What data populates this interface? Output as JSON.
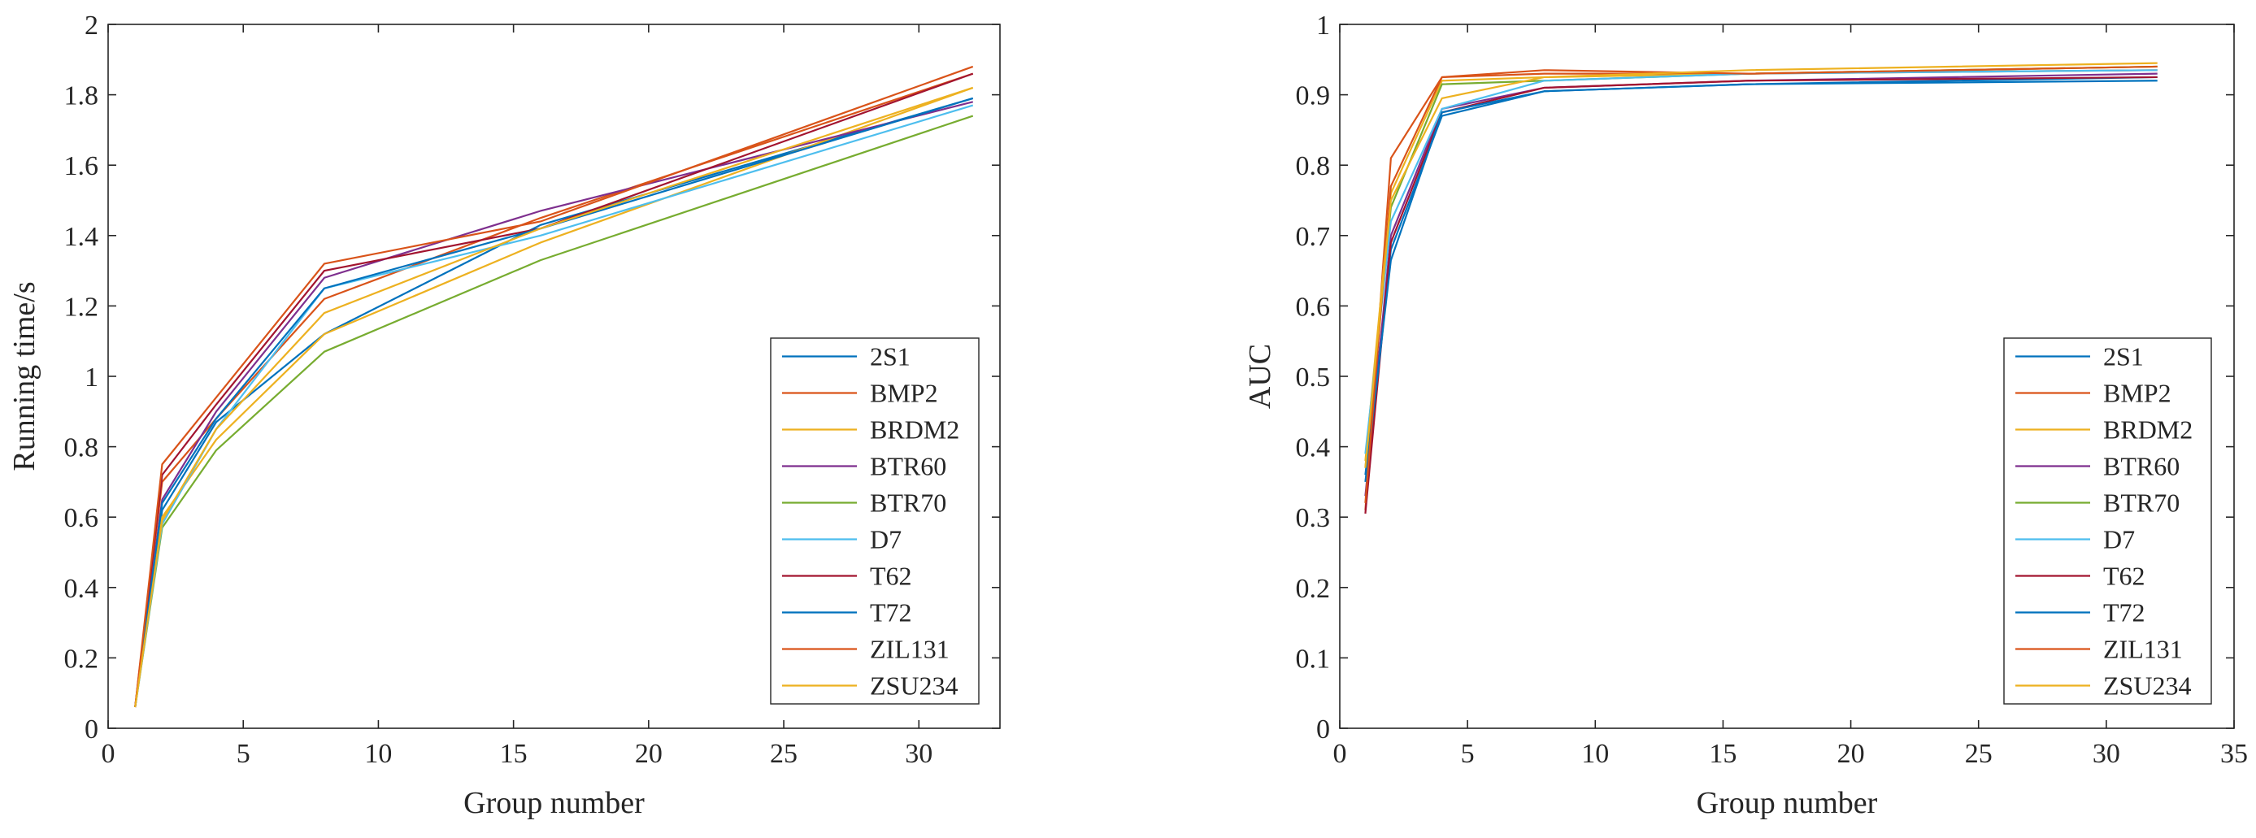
{
  "chart_data": [
    {
      "type": "line",
      "xlabel": "Group number",
      "ylabel": "Running time/s",
      "xlim": [
        0,
        33
      ],
      "ylim": [
        0,
        2
      ],
      "xticks": [
        0,
        5,
        10,
        15,
        20,
        25,
        30
      ],
      "yticks": [
        0,
        0.2,
        0.4,
        0.6,
        0.8,
        1,
        1.2,
        1.4,
        1.6,
        1.8,
        2
      ],
      "ytick_labels": [
        "0",
        "0.2",
        "0.4",
        "0.6",
        "0.8",
        "1",
        "1.2",
        "1.4",
        "1.6",
        "1.8",
        "2"
      ],
      "legend_position": "bottom-right",
      "x": [
        1,
        2,
        4,
        8,
        16,
        32
      ],
      "series": [
        {
          "name": "2S1",
          "color": "#0072BD",
          "values": [
            0.06,
            0.62,
            0.87,
            1.12,
            1.43,
            1.79
          ]
        },
        {
          "name": "BMP2",
          "color": "#D95319",
          "values": [
            0.06,
            0.7,
            0.88,
            1.22,
            1.45,
            1.86
          ]
        },
        {
          "name": "BRDM2",
          "color": "#EDB120",
          "values": [
            0.06,
            0.6,
            0.82,
            1.12,
            1.38,
            1.82
          ]
        },
        {
          "name": "BTR60",
          "color": "#7E2F8E",
          "values": [
            0.06,
            0.65,
            0.9,
            1.28,
            1.47,
            1.78
          ]
        },
        {
          "name": "BTR70",
          "color": "#77AC30",
          "values": [
            0.06,
            0.57,
            0.79,
            1.07,
            1.33,
            1.74
          ]
        },
        {
          "name": "D7",
          "color": "#4DBEEE",
          "values": [
            0.06,
            0.58,
            0.85,
            1.25,
            1.4,
            1.77
          ]
        },
        {
          "name": "T62",
          "color": "#A2142F",
          "values": [
            0.06,
            0.72,
            0.92,
            1.3,
            1.42,
            1.86
          ]
        },
        {
          "name": "T72",
          "color": "#0072BD",
          "values": [
            0.06,
            0.64,
            0.88,
            1.25,
            1.42,
            1.79
          ]
        },
        {
          "name": "ZIL131",
          "color": "#D95319",
          "values": [
            0.06,
            0.75,
            0.94,
            1.32,
            1.44,
            1.88
          ]
        },
        {
          "name": "ZSU234",
          "color": "#EDB120",
          "values": [
            0.06,
            0.59,
            0.85,
            1.18,
            1.42,
            1.82
          ]
        }
      ]
    },
    {
      "type": "line",
      "xlabel": "Group number",
      "ylabel": "AUC",
      "xlim": [
        0,
        35
      ],
      "ylim": [
        0,
        1
      ],
      "xticks": [
        0,
        5,
        10,
        15,
        20,
        25,
        30,
        35
      ],
      "yticks": [
        0,
        0.1,
        0.2,
        0.3,
        0.4,
        0.5,
        0.6,
        0.7,
        0.8,
        0.9,
        1
      ],
      "ytick_labels": [
        "0",
        "0.1",
        "0.2",
        "0.3",
        "0.4",
        "0.5",
        "0.6",
        "0.7",
        "0.8",
        "0.9",
        "1"
      ],
      "legend_position": "bottom-right",
      "x": [
        1,
        2,
        4,
        8,
        16,
        32
      ],
      "series": [
        {
          "name": "2S1",
          "color": "#0072BD",
          "values": [
            0.36,
            0.68,
            0.87,
            0.905,
            0.915,
            0.925
          ]
        },
        {
          "name": "BMP2",
          "color": "#D95319",
          "values": [
            0.31,
            0.81,
            0.925,
            0.93,
            0.93,
            0.935
          ]
        },
        {
          "name": "BRDM2",
          "color": "#EDB120",
          "values": [
            0.38,
            0.76,
            0.92,
            0.925,
            0.93,
            0.94
          ]
        },
        {
          "name": "BTR60",
          "color": "#7E2F8E",
          "values": [
            0.33,
            0.7,
            0.88,
            0.91,
            0.92,
            0.93
          ]
        },
        {
          "name": "BTR70",
          "color": "#77AC30",
          "values": [
            0.37,
            0.74,
            0.915,
            0.92,
            0.93,
            0.94
          ]
        },
        {
          "name": "D7",
          "color": "#4DBEEE",
          "values": [
            0.39,
            0.72,
            0.88,
            0.92,
            0.93,
            0.935
          ]
        },
        {
          "name": "T62",
          "color": "#A2142F",
          "values": [
            0.305,
            0.69,
            0.875,
            0.91,
            0.92,
            0.925
          ]
        },
        {
          "name": "T72",
          "color": "#0072BD",
          "values": [
            0.35,
            0.665,
            0.875,
            0.905,
            0.915,
            0.92
          ]
        },
        {
          "name": "ZIL131",
          "color": "#D95319",
          "values": [
            0.32,
            0.77,
            0.925,
            0.935,
            0.93,
            0.94
          ]
        },
        {
          "name": "ZSU234",
          "color": "#EDB120",
          "values": [
            0.37,
            0.75,
            0.895,
            0.925,
            0.935,
            0.945
          ]
        }
      ]
    }
  ]
}
